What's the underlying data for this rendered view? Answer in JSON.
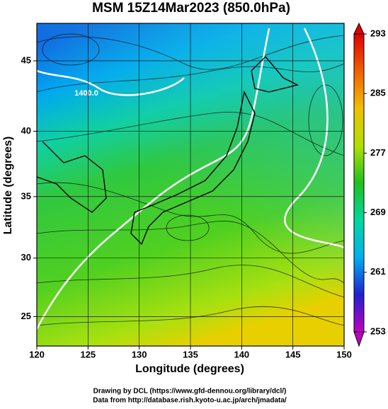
{
  "chart_data": {
    "type": "map",
    "title": "MSM 15Z14Mar2023 (850.0hPa)",
    "xlabel": "Longitude (degrees)",
    "ylabel": "Latitude  (degrees)",
    "xlim": [
      120,
      150
    ],
    "xticks": [
      120,
      125,
      130,
      135,
      140,
      145,
      150
    ],
    "ylim": [
      22.4,
      47.5
    ],
    "yticks": [
      25,
      30,
      35,
      40,
      45
    ],
    "projection": "mercator",
    "grid": true,
    "colorbar": {
      "lim": [
        253,
        293
      ],
      "ticks": [
        253,
        261,
        269,
        277,
        285,
        293
      ],
      "colors": [
        "#c000c0",
        "#2020d0",
        "#00b0f0",
        "#00d8a0",
        "#20c020",
        "#b0e000",
        "#f0c000",
        "#f06000",
        "#e00000"
      ]
    },
    "annotations": [
      "1400.0"
    ],
    "footer": [
      "Drawing by DCL (https://www.gfd-dennou.org/library/dcl/)",
      "Data from http://database.rish.kyoto-u.ac.jp/arch/jmadata/"
    ]
  }
}
